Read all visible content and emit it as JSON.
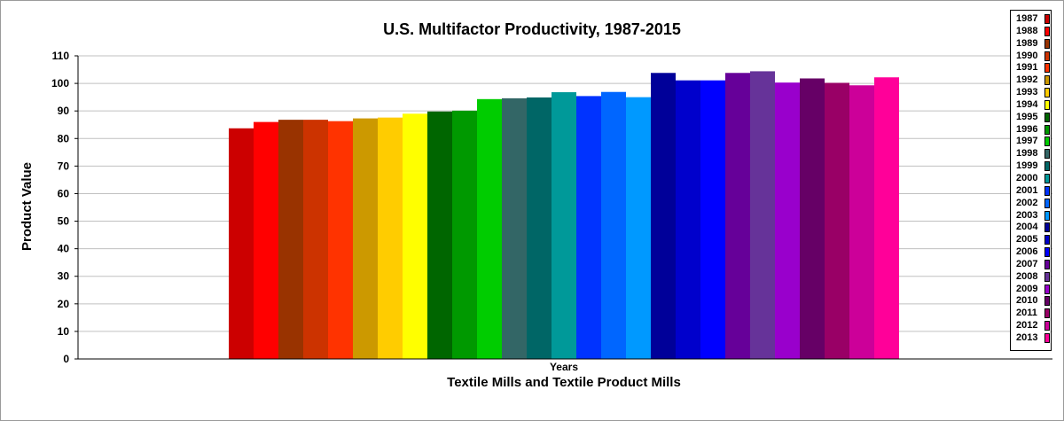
{
  "chart_data": {
    "type": "bar",
    "title": "U.S. Multifactor Productivity, 1987-2015",
    "xlabel": "Textile Mills and Textile Product Mills",
    "category_label": "Years",
    "ylabel": "Product Value",
    "ylim": [
      0,
      110
    ],
    "yticks": [
      0,
      10,
      20,
      30,
      40,
      50,
      60,
      70,
      80,
      90,
      100,
      110
    ],
    "grid": true,
    "legend_position": "right",
    "series": [
      {
        "name": "1987",
        "value": 83.7,
        "color": "#cc0000"
      },
      {
        "name": "1988",
        "value": 86.0,
        "color": "#ff0000"
      },
      {
        "name": "1989",
        "value": 86.8,
        "color": "#993300"
      },
      {
        "name": "1990",
        "value": 86.8,
        "color": "#cc3300"
      },
      {
        "name": "1991",
        "value": 86.3,
        "color": "#ff3300"
      },
      {
        "name": "1992",
        "value": 87.3,
        "color": "#cc9900"
      },
      {
        "name": "1993",
        "value": 87.6,
        "color": "#ffcc00"
      },
      {
        "name": "1994",
        "value": 89.0,
        "color": "#ffff00"
      },
      {
        "name": "1995",
        "value": 89.8,
        "color": "#006600"
      },
      {
        "name": "1996",
        "value": 90.1,
        "color": "#009900"
      },
      {
        "name": "1997",
        "value": 94.3,
        "color": "#00cc00"
      },
      {
        "name": "1998",
        "value": 94.6,
        "color": "#336666"
      },
      {
        "name": "1999",
        "value": 94.9,
        "color": "#006666"
      },
      {
        "name": "2000",
        "value": 96.8,
        "color": "#009999"
      },
      {
        "name": "2001",
        "value": 95.4,
        "color": "#0033ff"
      },
      {
        "name": "2002",
        "value": 96.9,
        "color": "#0066ff"
      },
      {
        "name": "2003",
        "value": 95.0,
        "color": "#0099ff"
      },
      {
        "name": "2004",
        "value": 103.8,
        "color": "#000099"
      },
      {
        "name": "2005",
        "value": 101.1,
        "color": "#0000cc"
      },
      {
        "name": "2006",
        "value": 101.1,
        "color": "#0000ff"
      },
      {
        "name": "2007",
        "value": 103.8,
        "color": "#660099"
      },
      {
        "name": "2008",
        "value": 104.4,
        "color": "#663399"
      },
      {
        "name": "2009",
        "value": 100.3,
        "color": "#9900cc"
      },
      {
        "name": "2010",
        "value": 101.8,
        "color": "#660066"
      },
      {
        "name": "2011",
        "value": 100.2,
        "color": "#990066"
      },
      {
        "name": "2012",
        "value": 99.3,
        "color": "#cc0099"
      },
      {
        "name": "2013",
        "value": 102.2,
        "color": "#ff0099"
      }
    ]
  }
}
